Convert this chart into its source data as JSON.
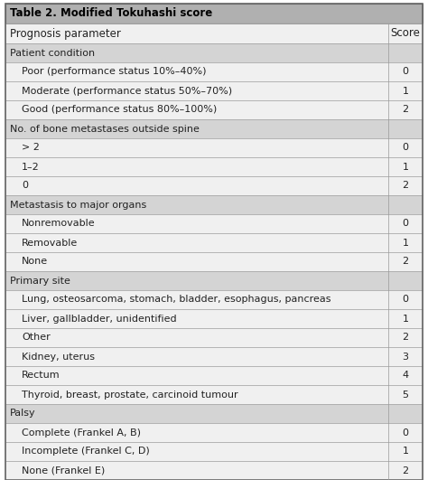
{
  "title": "Table 2. Modified Tokuhashi score",
  "header": [
    "Prognosis parameter",
    "Score"
  ],
  "rows": [
    {
      "text": "Patient condition",
      "score": "",
      "indent": false,
      "is_category": true
    },
    {
      "text": "Poor (performance status 10%–40%)",
      "score": "0",
      "indent": true,
      "is_category": false
    },
    {
      "text": "Moderate (performance status 50%–70%)",
      "score": "1",
      "indent": true,
      "is_category": false
    },
    {
      "text": "Good (performance status 80%–100%)",
      "score": "2",
      "indent": true,
      "is_category": false
    },
    {
      "text": "No. of bone metastases outside spine",
      "score": "",
      "indent": false,
      "is_category": true
    },
    {
      "text": "> 2",
      "score": "0",
      "indent": true,
      "is_category": false
    },
    {
      "text": "1–2",
      "score": "1",
      "indent": true,
      "is_category": false
    },
    {
      "text": "0",
      "score": "2",
      "indent": true,
      "is_category": false
    },
    {
      "text": "Metastasis to major organs",
      "score": "",
      "indent": false,
      "is_category": true
    },
    {
      "text": "Nonremovable",
      "score": "0",
      "indent": true,
      "is_category": false
    },
    {
      "text": "Removable",
      "score": "1",
      "indent": true,
      "is_category": false
    },
    {
      "text": "None",
      "score": "2",
      "indent": true,
      "is_category": false
    },
    {
      "text": "Primary site",
      "score": "",
      "indent": false,
      "is_category": true
    },
    {
      "text": "Lung, osteosarcoma, stomach, bladder, esophagus, pancreas",
      "score": "0",
      "indent": true,
      "is_category": false
    },
    {
      "text": "Liver, gallbladder, unidentified",
      "score": "1",
      "indent": true,
      "is_category": false
    },
    {
      "text": "Other",
      "score": "2",
      "indent": true,
      "is_category": false
    },
    {
      "text": "Kidney, uterus",
      "score": "3",
      "indent": true,
      "is_category": false
    },
    {
      "text": "Rectum",
      "score": "4",
      "indent": true,
      "is_category": false
    },
    {
      "text": "Thyroid, breast, prostate, carcinoid tumour",
      "score": "5",
      "indent": true,
      "is_category": false
    },
    {
      "text": "Palsy",
      "score": "",
      "indent": false,
      "is_category": true
    },
    {
      "text": "Complete (Frankel A, B)",
      "score": "0",
      "indent": true,
      "is_category": false
    },
    {
      "text": "Incomplete (Frankel C, D)",
      "score": "1",
      "indent": true,
      "is_category": false
    },
    {
      "text": "None (Frankel E)",
      "score": "2",
      "indent": true,
      "is_category": false
    }
  ],
  "title_bg": "#b0b0b0",
  "header_bg": "#f0f0f0",
  "category_bg": "#d4d4d4",
  "row_bg": "#f0f0f0",
  "border_color": "#999999",
  "outer_border_color": "#666666",
  "title_color": "#000000",
  "text_color": "#222222",
  "title_fontsize": 8.5,
  "header_fontsize": 8.5,
  "row_fontsize": 8.0,
  "fig_width": 4.74,
  "fig_height": 5.31,
  "dpi": 100
}
